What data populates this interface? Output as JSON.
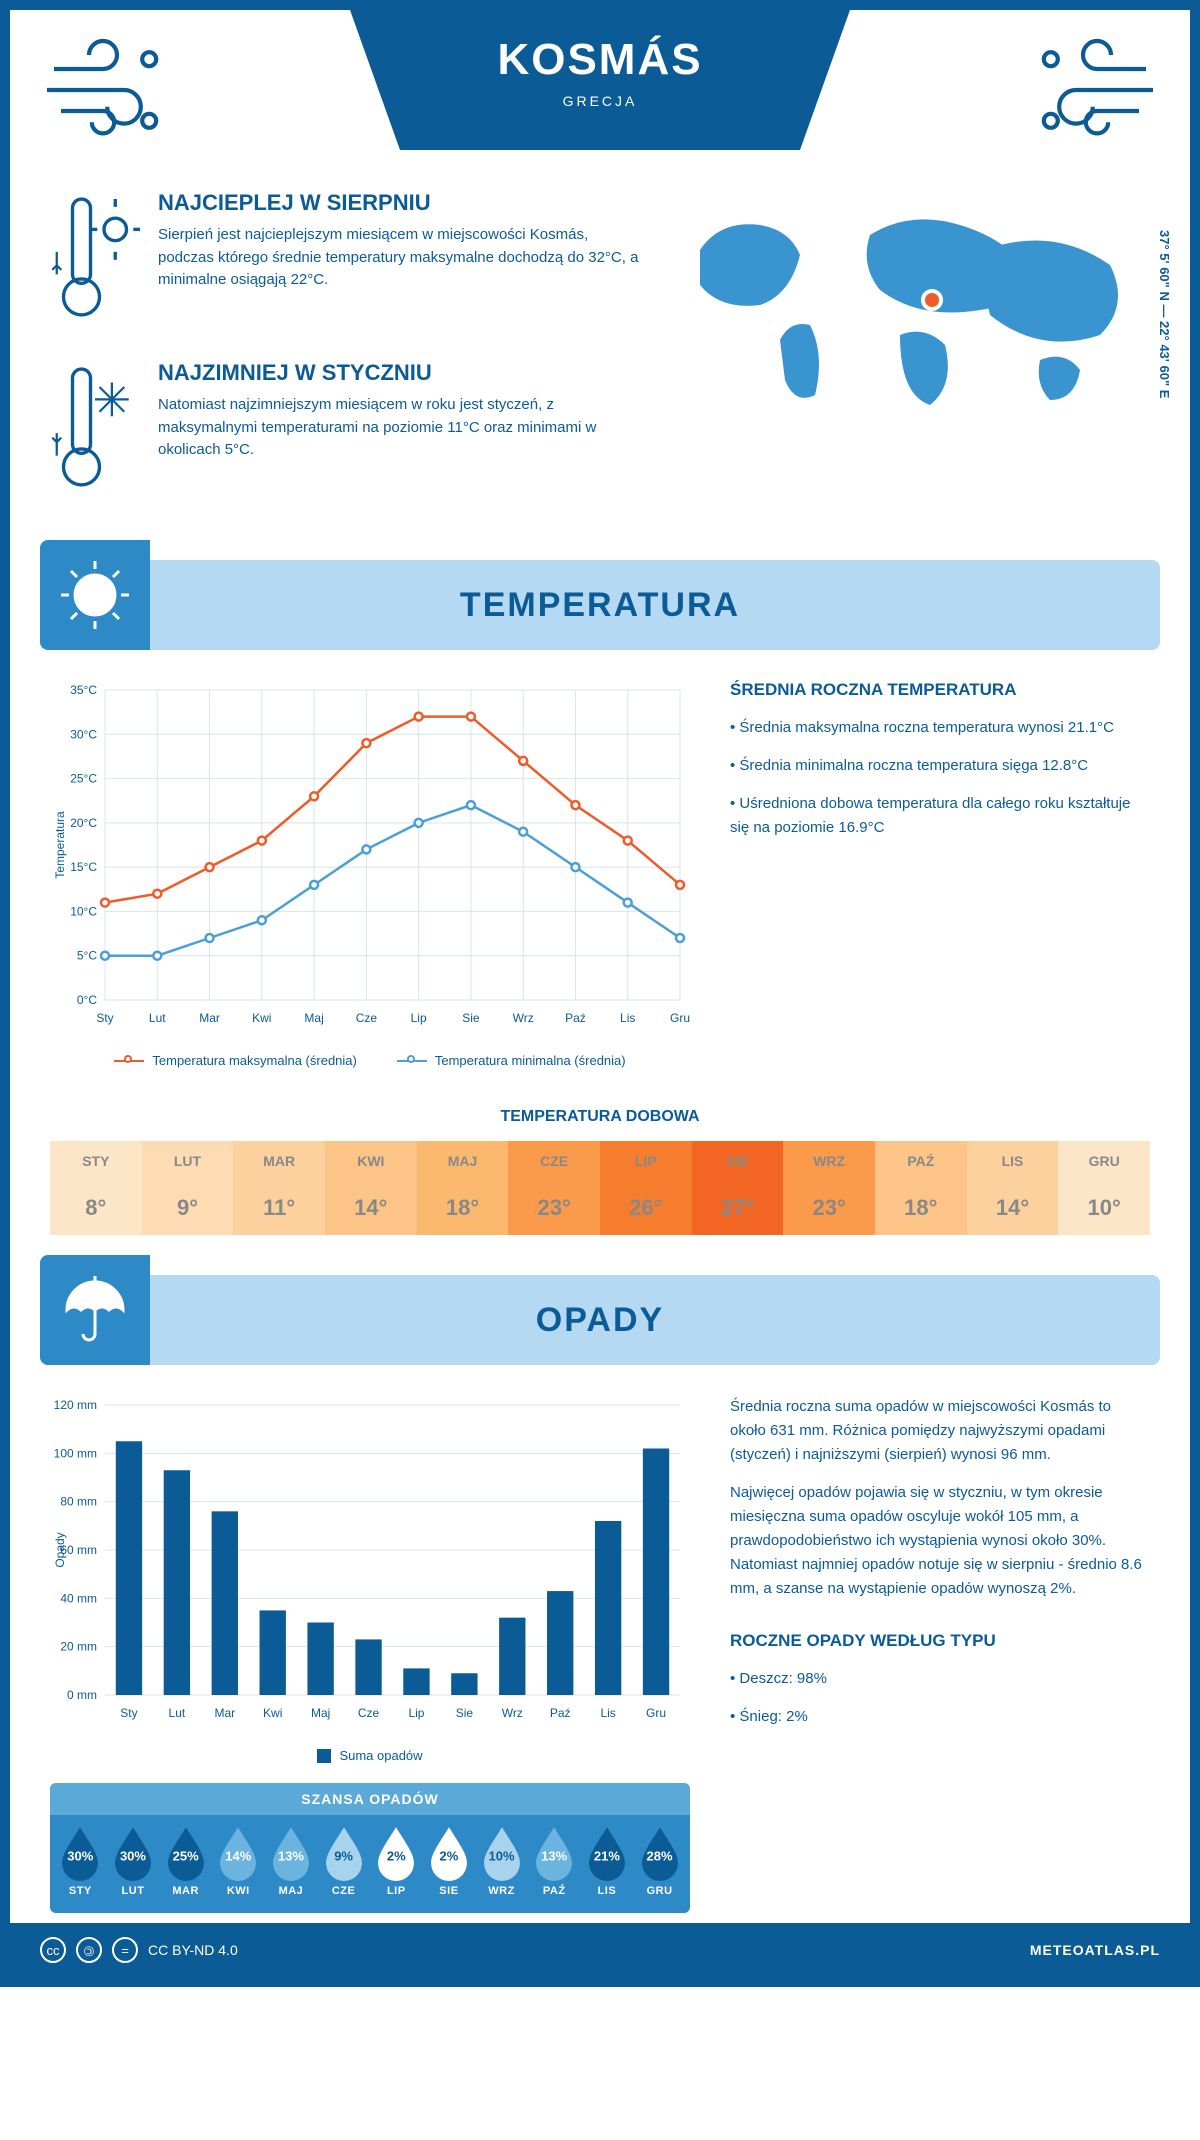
{
  "header": {
    "title": "KOSMÁS",
    "subtitle": "GRECJA"
  },
  "coords": "37° 5' 60\" N — 22° 43' 60\" E",
  "intro": {
    "hot": {
      "title": "NAJCIEPLEJ W SIERPNIU",
      "text": "Sierpień jest najcieplejszym miesiącem w miejscowości Kosmás, podczas którego średnie temperatury maksymalne dochodzą do 32°C, a minimalne osiągają 22°C."
    },
    "cold": {
      "title": "NAJZIMNIEJ W STYCZNIU",
      "text": "Natomiast najzimniejszym miesiącem w roku jest styczeń, z maksymalnymi temperaturami na poziomie 11°C oraz minimami w okolicach 5°C."
    }
  },
  "colors": {
    "primary": "#0b5b96",
    "banner": "#b5d9f2",
    "banner_dark": "#2d8ac7",
    "max_line": "#f05a28",
    "min_line": "#4a9fd8",
    "bar": "#0b5b96",
    "grid": "#d8e4ee"
  },
  "temp_section": {
    "banner": "TEMPERATURA",
    "chart": {
      "type": "line",
      "ylabel": "Temperatura",
      "ylim": [
        0,
        35
      ],
      "ytick_step": 5,
      "y_suffix": "°C",
      "months": [
        "Sty",
        "Lut",
        "Mar",
        "Kwi",
        "Maj",
        "Cze",
        "Lip",
        "Sie",
        "Wrz",
        "Paź",
        "Lis",
        "Gru"
      ],
      "series": [
        {
          "name": "Temperatura maksymalna (średnia)",
          "color": "#f05a28",
          "values": [
            11,
            12,
            15,
            18,
            23,
            29,
            32,
            32,
            27,
            22,
            18,
            13
          ]
        },
        {
          "name": "Temperatura minimalna (średnia)",
          "color": "#4a9fd8",
          "values": [
            5,
            5,
            7,
            9,
            13,
            17,
            20,
            22,
            19,
            15,
            11,
            7
          ]
        }
      ]
    },
    "side": {
      "title": "ŚREDNIA ROCZNA TEMPERATURA",
      "bullets": [
        "• Średnia maksymalna roczna temperatura wynosi 21.1°C",
        "• Średnia minimalna roczna temperatura sięga 12.8°C",
        "• Uśredniona dobowa temperatura dla całego roku kształtuje się na poziomie 16.9°C"
      ]
    },
    "daily_title": "TEMPERATURA DOBOWA",
    "daily": {
      "months": [
        "STY",
        "LUT",
        "MAR",
        "KWI",
        "MAJ",
        "CZE",
        "LIP",
        "SIE",
        "WRZ",
        "PAŹ",
        "LIS",
        "GRU"
      ],
      "values": [
        "8°",
        "9°",
        "11°",
        "14°",
        "18°",
        "23°",
        "26°",
        "27°",
        "23°",
        "18°",
        "14°",
        "10°"
      ],
      "colors": [
        "#fde5c8",
        "#fddcb4",
        "#fdd19e",
        "#fcc587",
        "#fbb96f",
        "#fa9a4a",
        "#f77d2e",
        "#f26522",
        "#fa9a4a",
        "#fcc587",
        "#fdd19e",
        "#fde5c8"
      ]
    }
  },
  "precip_section": {
    "banner": "OPADY",
    "chart": {
      "type": "bar",
      "ylabel": "Opady",
      "ylim": [
        0,
        120
      ],
      "ytick_step": 20,
      "y_suffix": " mm",
      "months": [
        "Sty",
        "Lut",
        "Mar",
        "Kwi",
        "Maj",
        "Cze",
        "Lip",
        "Sie",
        "Wrz",
        "Paź",
        "Lis",
        "Gru"
      ],
      "values": [
        105,
        93,
        76,
        35,
        30,
        23,
        11,
        9,
        32,
        43,
        72,
        102
      ],
      "legend": "Suma opadów",
      "bar_color": "#0b5b96"
    },
    "side": {
      "p1": "Średnia roczna suma opadów w miejscowości Kosmás to około 631 mm. Różnica pomiędzy najwyższymi opadami (styczeń) i najniższymi (sierpień) wynosi 96 mm.",
      "p2": "Najwięcej opadów pojawia się w styczniu, w tym okresie miesięczna suma opadów oscyluje wokół 105 mm, a prawdopodobieństwo ich wystąpienia wynosi około 30%. Natomiast najmniej opadów notuje się w sierpniu - średnio 8.6 mm, a szanse na wystąpienie opadów wynoszą 2%.",
      "type_title": "ROCZNE OPADY WEDŁUG TYPU",
      "types": [
        "• Deszcz: 98%",
        "• Śnieg: 2%"
      ]
    },
    "chance": {
      "title": "SZANSA OPADÓW",
      "months": [
        "STY",
        "LUT",
        "MAR",
        "KWI",
        "MAJ",
        "CZE",
        "LIP",
        "SIE",
        "WRZ",
        "PAŹ",
        "LIS",
        "GRU"
      ],
      "values": [
        "30%",
        "30%",
        "25%",
        "14%",
        "13%",
        "9%",
        "2%",
        "2%",
        "10%",
        "13%",
        "21%",
        "28%"
      ],
      "fills": [
        "#0b5b96",
        "#0b5b96",
        "#0b5b96",
        "#6cb4e0",
        "#6cb4e0",
        "#a8d3ec",
        "#ffffff",
        "#ffffff",
        "#a8d3ec",
        "#6cb4e0",
        "#0b5b96",
        "#0b5b96"
      ],
      "text_colors": [
        "#fff",
        "#fff",
        "#fff",
        "#fff",
        "#fff",
        "#0b5b96",
        "#0b5b96",
        "#0b5b96",
        "#0b5b96",
        "#fff",
        "#fff",
        "#fff"
      ]
    }
  },
  "footer": {
    "license": "CC BY-ND 4.0",
    "site": "METEOATLAS.PL"
  }
}
